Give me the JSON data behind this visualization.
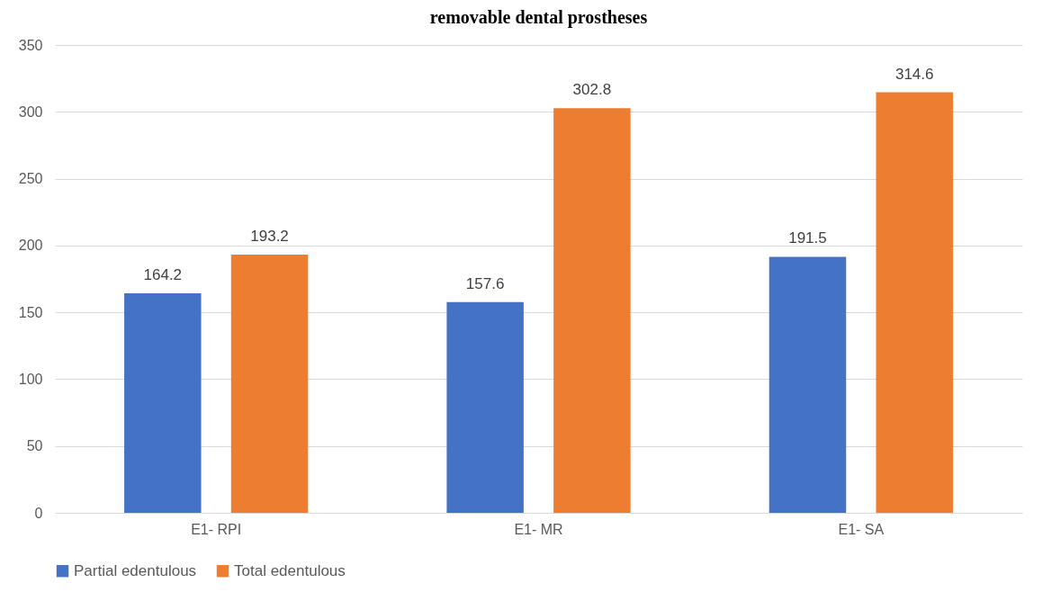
{
  "chart_data": {
    "type": "bar",
    "title": "removable dental prostheses",
    "categories": [
      "E1- RPI",
      "E1- MR",
      "E1- SA"
    ],
    "series": [
      {
        "name": "Partial edentulous",
        "color": "#4472c4",
        "values": [
          164.2,
          157.6,
          191.5
        ]
      },
      {
        "name": "Total edentulous",
        "color": "#ed7d31",
        "values": [
          193.2,
          302.8,
          314.6
        ]
      }
    ],
    "ylim": [
      0,
      350
    ],
    "yticks": [
      0,
      50,
      100,
      150,
      200,
      250,
      300,
      350
    ],
    "grid": "y",
    "legend": "bottom",
    "data_labels": true
  }
}
